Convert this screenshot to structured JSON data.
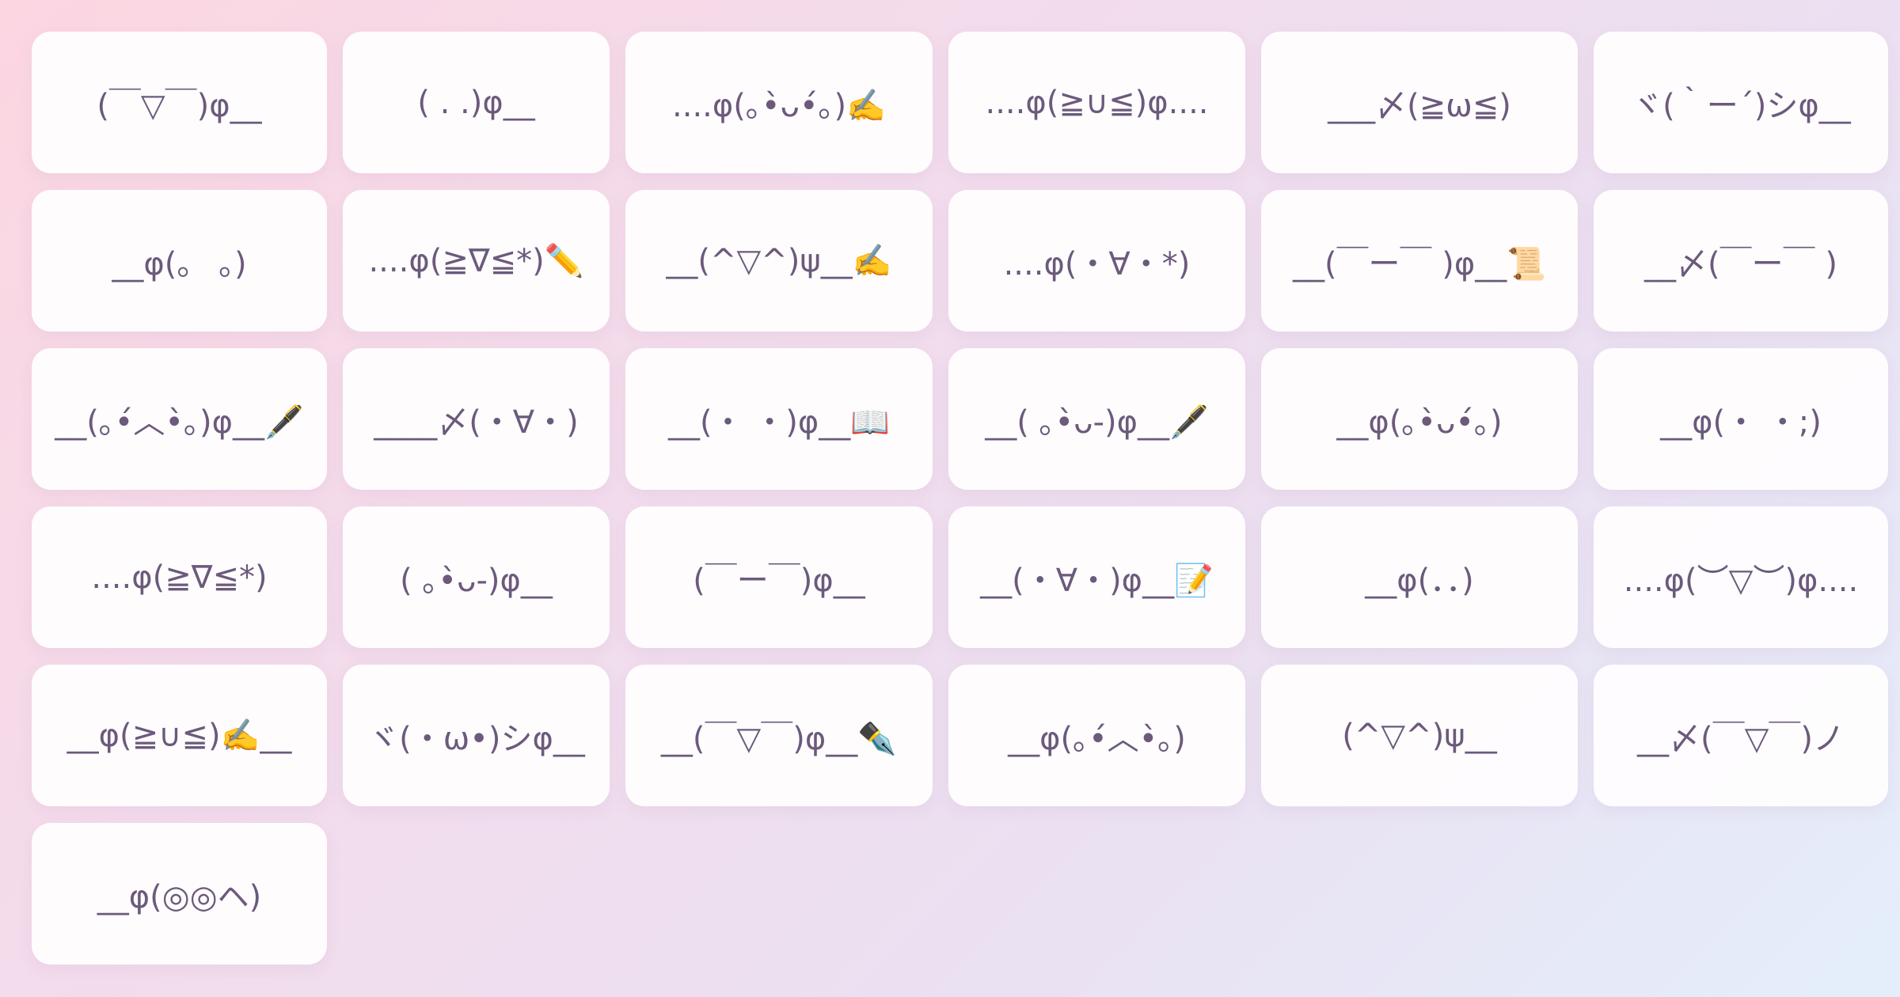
{
  "kaomoji": [
    "(￣▽￣)φ__",
    "( . .)φ__",
    "....φ(｡•̀ᴗ•́｡)✍️",
    "....φ(≧∪≦)φ....",
    "___〆(≧ω≦)",
    "ヾ(｀ー´)シφ__",
    "__φ(。 。)",
    "....φ(≧∇≦*)✏️",
    "__(^▽^)ψ__✍️",
    "....φ(・∀・*)",
    "__(￣ー￣ )φ__📜",
    "__〆(￣ー￣ )",
    "__(｡•́︿•̀｡)φ__🖋️",
    "____〆(・∀・)",
    "__(・ ・)φ__📖",
    "__( ｡•̀ᴗ-)φ__🖋️",
    "__φ(｡•̀ᴗ•́｡)",
    "__φ(・ ・;)",
    "....φ(≧∇≦*)",
    "( ｡•̀ᴗ-)φ__",
    "(￣ー￣)φ__",
    "__(・∀・)φ__📝",
    "__φ(．．)",
    "....φ(︶▽︶)φ....",
    "__φ(≧∪≦)✍️__",
    "ヾ(・ω•)シφ__",
    "__(￣▽￣)φ__✒️",
    "__φ(｡•́︿•̀｡)",
    "(^▽^)ψ__",
    "__〆(￣▽￣)ノ",
    "__φ(◎◎ヘ)"
  ],
  "colors": {
    "text": "#6b5a7c",
    "card": "#fffdfe"
  }
}
